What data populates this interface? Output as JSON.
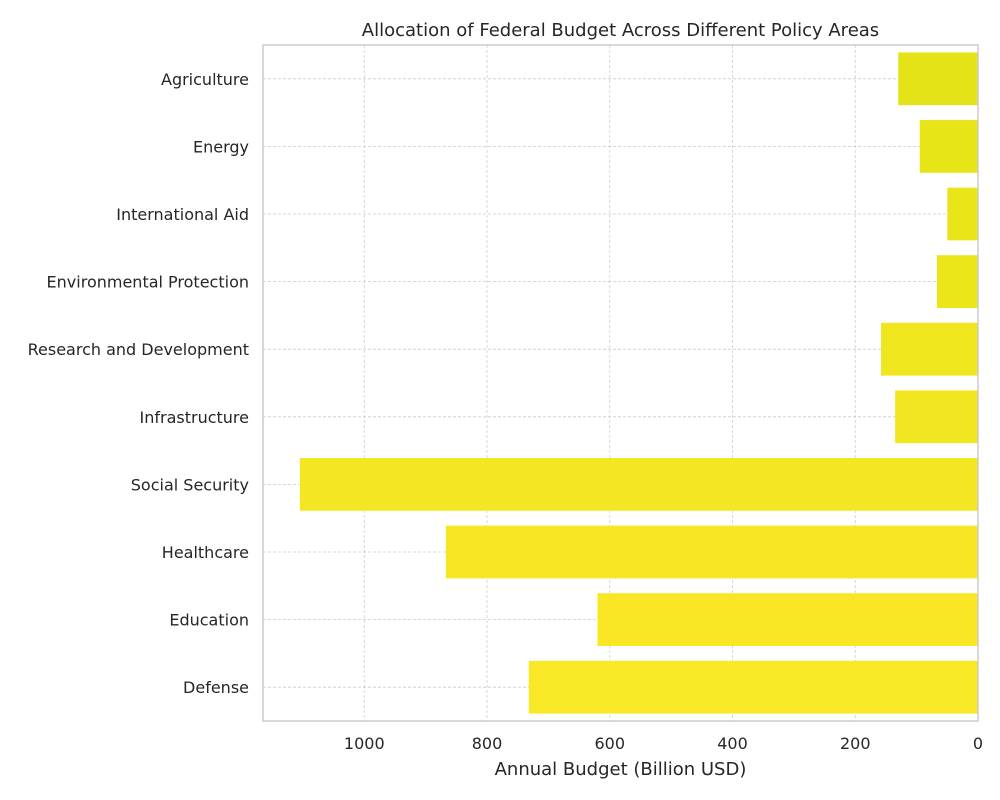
{
  "chart_data": {
    "type": "bar",
    "orientation": "horizontal",
    "title": "Allocation of Federal Budget Across Different Policy Areas",
    "xlabel": "Annual Budget (Billion USD)",
    "ylabel": "",
    "x_axis_inverted": true,
    "xlim": [
      1165,
      0
    ],
    "xticks": [
      1000,
      800,
      600,
      400,
      200,
      0
    ],
    "grid": true,
    "categories": [
      "Defense",
      "Education",
      "Healthcare",
      "Social Security",
      "Infrastructure",
      "Research and Development",
      "Environmental Protection",
      "International Aid",
      "Energy",
      "Agriculture"
    ],
    "values": [
      732,
      620,
      867,
      1105,
      135,
      158,
      67,
      50,
      95,
      130
    ],
    "colors": [
      "#f9e825",
      "#f9e625",
      "#f8e624",
      "#f5e623",
      "#f1e61f",
      "#efe61d",
      "#eae61a",
      "#e9e519",
      "#e7e418",
      "#e3e317"
    ]
  }
}
